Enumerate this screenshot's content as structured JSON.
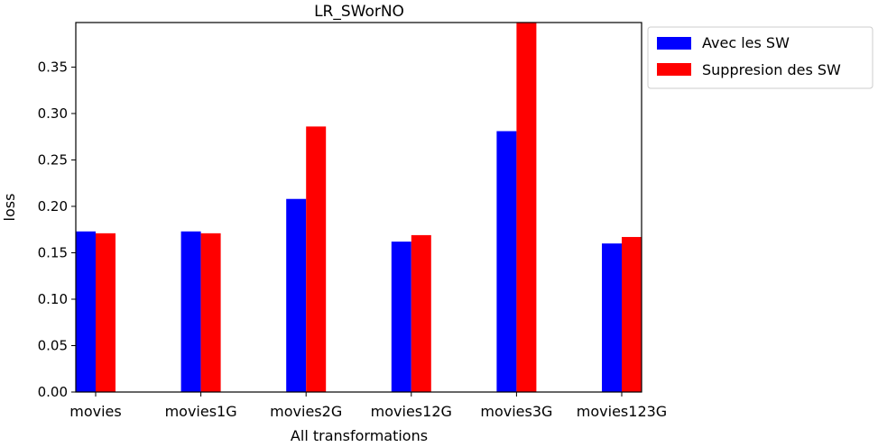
{
  "chart_data": {
    "type": "bar",
    "title": "LR_SWorNO",
    "xlabel": "All transformations",
    "ylabel": "loss",
    "categories": [
      "movies",
      "movies1G",
      "movies2G",
      "movies12G",
      "movies3G",
      "movies123G"
    ],
    "series": [
      {
        "name": "Avec les SW",
        "color": "#0000ff",
        "values": [
          0.173,
          0.173,
          0.208,
          0.162,
          0.281,
          0.16
        ]
      },
      {
        "name": "Suppresion des SW",
        "color": "#ff0000",
        "values": [
          0.171,
          0.171,
          0.286,
          0.169,
          0.398,
          0.167
        ]
      }
    ],
    "ylim": [
      0,
      0.398
    ],
    "yticks": [
      "0.00",
      "0.05",
      "0.10",
      "0.15",
      "0.20",
      "0.25",
      "0.30",
      "0.35"
    ],
    "grid": false,
    "legend_position": "outside-top-right"
  }
}
